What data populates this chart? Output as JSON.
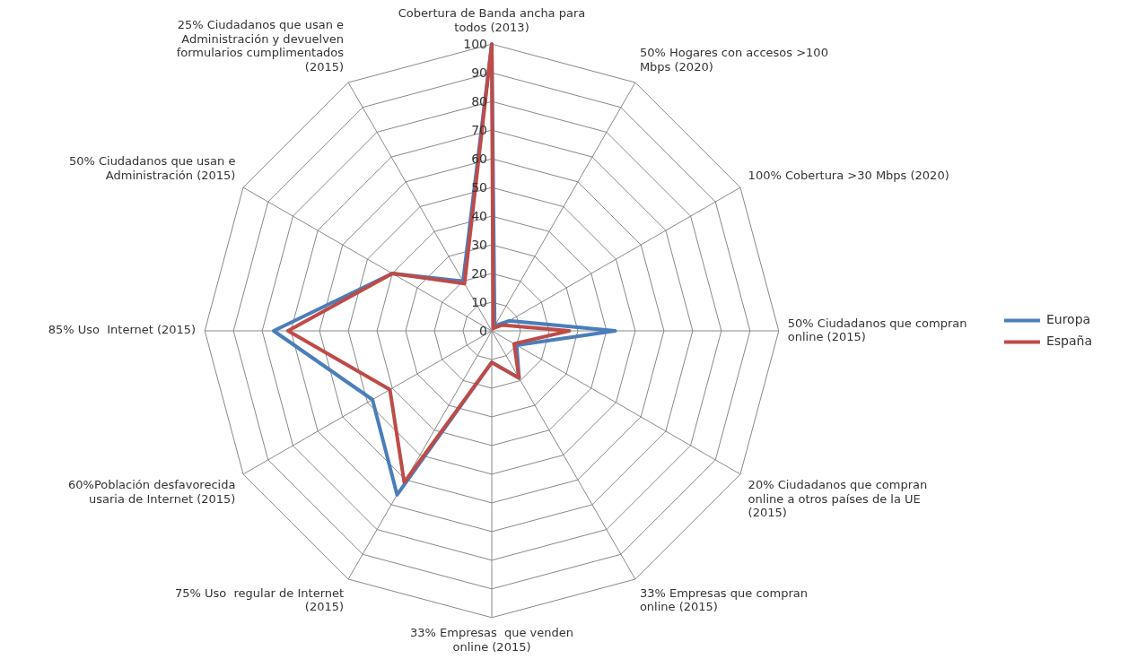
{
  "chart_data": {
    "type": "radar",
    "categories": [
      "Cobertura de Banda ancha para todos (2013)",
      "50% Hogares con accesos >100 Mbps (2020)",
      "100% Cobertura >30 Mbps (2020)",
      "50% Ciudadanos que compran online (2015)",
      "20% Ciudadanos que compran online a otros países de la UE (2015)",
      "33% Empresas que compran online (2015)",
      "33% Empresas  que venden online (2015)",
      "75% Uso  regular de Internet (2015)",
      "60%Población desfavorecida usaria de Internet (2015)",
      "85% Uso  Internet (2015)",
      "50% Ciudadanos que usan e Administración (2015)",
      "25% Ciudadanos que usan e Administración y devuelven formularios cumplimentados (2015)"
    ],
    "series": [
      {
        "name": "Europa",
        "color": "#4a7ebb",
        "values": [
          100,
          2,
          7,
          43,
          10,
          19,
          11,
          66,
          48,
          76,
          40,
          20
        ]
      },
      {
        "name": "España",
        "color": "#be4b48",
        "values": [
          100,
          1,
          4,
          27,
          9,
          19,
          11,
          61,
          41,
          71,
          40,
          19
        ]
      }
    ],
    "ylim": [
      0,
      100
    ],
    "yticks": [
      0,
      10,
      20,
      30,
      40,
      50,
      60,
      70,
      80,
      90,
      100
    ],
    "grid": true,
    "legend": "right",
    "marker": "none"
  }
}
